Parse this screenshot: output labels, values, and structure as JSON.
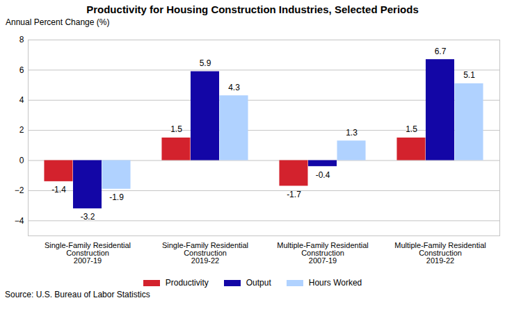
{
  "chart_data": {
    "type": "bar",
    "title": "Productivity for Housing Construction Industries, Selected Periods",
    "y_label": "Annual Percent Change (%)",
    "source": "Source: U.S. Bureau of Labor Statistics",
    "categories": [
      "Single-Family Residential\nConstruction\n2007-19",
      "Single-Family Residential\nConstruction\n2019-22",
      "Multiple-Family Residential\nConstruction\n2007-19",
      "Multiple-Family Residential\nConstruction\n2019-22"
    ],
    "series": [
      {
        "name": "Productivity",
        "color": "#d3222d",
        "values": [
          -1.4,
          1.5,
          -1.7,
          1.5
        ]
      },
      {
        "name": "Output",
        "color": "#1306a6",
        "values": [
          -3.2,
          5.9,
          -0.4,
          6.7
        ]
      },
      {
        "name": "Hours Worked",
        "color": "#b0d2ff",
        "values": [
          -1.9,
          4.3,
          1.3,
          5.1
        ]
      }
    ],
    "ylim": [
      -5,
      8
    ],
    "yticks": [
      -4,
      -2,
      0,
      2,
      4,
      6,
      8
    ],
    "grid": true,
    "legend": "bottom",
    "data_labels": true
  }
}
